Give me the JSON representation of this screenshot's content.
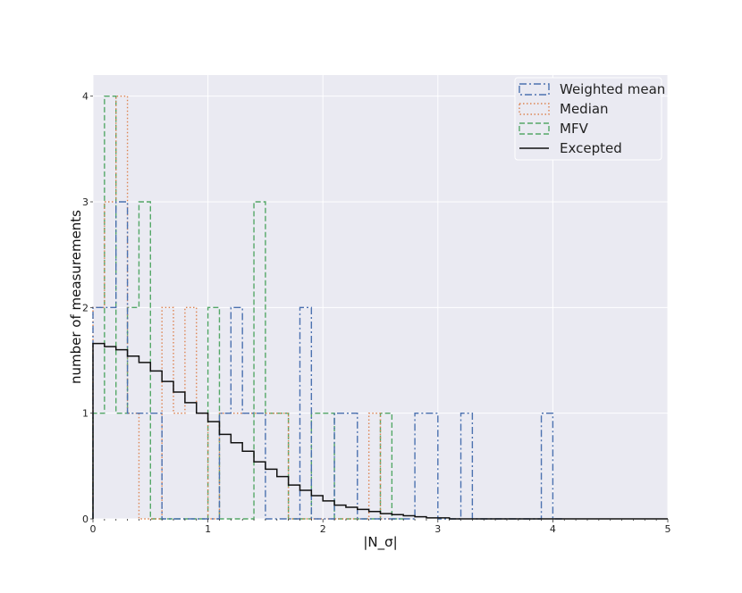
{
  "chart_data": {
    "type": "histogram",
    "xlabel": "|N_σ|",
    "ylabel": "number of measurements",
    "xlim": [
      0,
      5
    ],
    "ylim": [
      0,
      4.2
    ],
    "x_ticks": [
      0,
      1,
      2,
      3,
      4,
      5
    ],
    "y_ticks": [
      0,
      1,
      2,
      3,
      4
    ],
    "grid": true,
    "background": "#eaeaf2",
    "legend_position": "top-right",
    "bin_width": 0.1,
    "series": [
      {
        "name": "Weighted mean",
        "style": "dashdot",
        "color": "#4c72b0",
        "bin_starts": [
          0.0,
          0.1,
          0.2,
          0.3,
          0.4,
          0.5,
          0.6,
          0.7,
          0.8,
          0.9,
          1.0,
          1.1,
          1.2,
          1.3,
          1.4,
          1.5,
          1.6,
          1.7,
          1.8,
          1.9,
          2.0,
          2.1,
          2.2,
          2.3,
          2.4,
          2.5,
          2.6,
          2.7,
          2.8,
          2.9,
          3.0,
          3.1,
          3.2,
          3.3,
          3.4,
          3.5,
          3.6,
          3.7,
          3.8,
          3.9,
          4.0
        ],
        "counts": [
          2,
          2,
          3,
          1,
          1,
          1,
          0,
          0,
          0,
          0,
          0,
          1,
          2,
          1,
          1,
          0,
          0,
          0,
          2,
          0,
          0,
          1,
          1,
          0,
          0,
          0,
          0,
          0,
          1,
          1,
          0,
          0,
          1,
          0,
          0,
          0,
          0,
          0,
          0,
          1,
          0
        ]
      },
      {
        "name": "Median",
        "style": "dotted",
        "color": "#dd8452",
        "bin_starts": [
          0.0,
          0.1,
          0.2,
          0.3,
          0.4,
          0.5,
          0.6,
          0.7,
          0.8,
          0.9,
          1.0,
          1.1,
          1.2,
          1.3,
          1.4,
          1.5,
          1.6,
          1.7,
          1.8,
          1.9,
          2.0,
          2.1,
          2.2,
          2.3,
          2.4,
          2.5
        ],
        "counts": [
          2,
          3,
          4,
          1,
          0,
          0,
          2,
          1,
          2,
          1,
          0,
          1,
          1,
          1,
          1,
          1,
          1,
          0,
          0,
          0,
          0,
          0,
          0,
          0,
          1,
          0
        ]
      },
      {
        "name": "MFV",
        "style": "dashed",
        "color": "#55a868",
        "bin_starts": [
          0.0,
          0.1,
          0.2,
          0.3,
          0.4,
          0.5,
          0.6,
          0.7,
          0.8,
          0.9,
          1.0,
          1.1,
          1.2,
          1.3,
          1.4,
          1.5,
          1.6,
          1.7,
          1.8,
          1.9,
          2.0,
          2.1,
          2.2,
          2.3,
          2.4,
          2.5,
          2.6
        ],
        "counts": [
          1,
          4,
          1,
          2,
          3,
          0,
          0,
          0,
          0,
          0,
          2,
          0,
          0,
          0,
          3,
          1,
          1,
          0,
          0,
          1,
          1,
          0,
          0,
          0,
          0,
          1,
          0
        ]
      },
      {
        "name": "Excepted",
        "style": "solid-step",
        "color": "#111111",
        "bin_starts": [
          0.0,
          0.1,
          0.2,
          0.3,
          0.4,
          0.5,
          0.6,
          0.7,
          0.8,
          0.9,
          1.0,
          1.1,
          1.2,
          1.3,
          1.4,
          1.5,
          1.6,
          1.7,
          1.8,
          1.9,
          2.0,
          2.1,
          2.2,
          2.3,
          2.4,
          2.5,
          2.6,
          2.7,
          2.8,
          2.9,
          3.0,
          3.1,
          3.2,
          3.3,
          3.4,
          3.5,
          3.6,
          3.7,
          3.8,
          3.9,
          4.0,
          4.1,
          4.2,
          4.3,
          4.4,
          4.5,
          4.6,
          4.7,
          4.8,
          4.9
        ],
        "counts": [
          1.66,
          1.63,
          1.6,
          1.54,
          1.48,
          1.4,
          1.3,
          1.2,
          1.1,
          1.0,
          0.92,
          0.8,
          0.72,
          0.64,
          0.54,
          0.47,
          0.4,
          0.32,
          0.27,
          0.22,
          0.17,
          0.13,
          0.11,
          0.09,
          0.07,
          0.05,
          0.04,
          0.03,
          0.02,
          0.01,
          0.01,
          0.0,
          0.0,
          0.0,
          0.0,
          0.0,
          0.0,
          0.0,
          0.0,
          0.0,
          0.0,
          0.0,
          0.0,
          0.0,
          0.0,
          0.0,
          0.0,
          0.0,
          0.0,
          0.0
        ]
      }
    ]
  }
}
